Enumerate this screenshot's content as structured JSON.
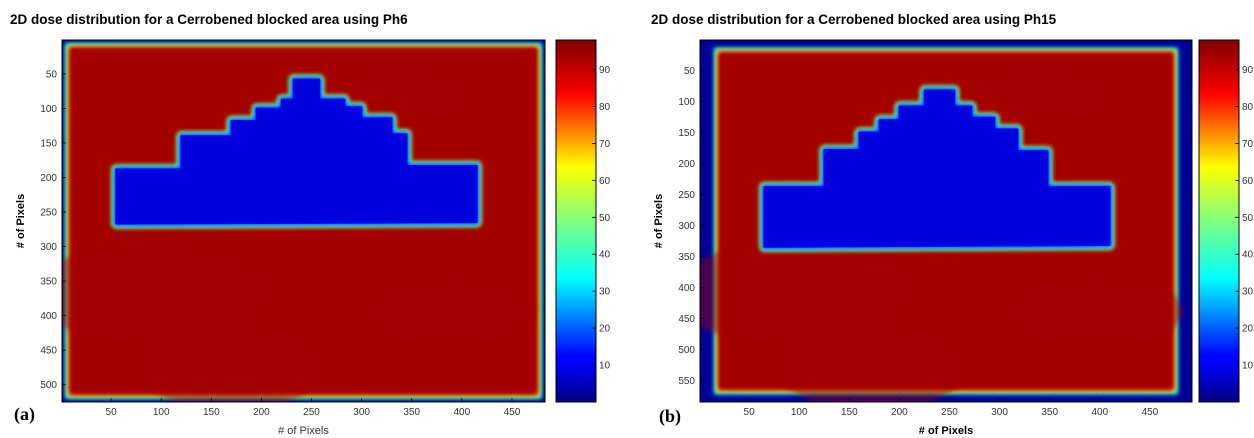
{
  "chart_data": [
    {
      "type": "heatmap",
      "panel_label": "(a)",
      "title": "2D dose distribution for a Cerrobened blocked area using Ph6",
      "xlabel": "# of Pixels",
      "ylabel": "# of Pixels",
      "xlim": [
        1,
        483
      ],
      "ylim": [
        1,
        525
      ],
      "y_reversed": true,
      "xticks": [
        50,
        100,
        150,
        200,
        250,
        300,
        350,
        400,
        450
      ],
      "yticks": [
        50,
        100,
        150,
        200,
        250,
        300,
        350,
        400,
        450,
        500
      ],
      "colorbar": {
        "ticks": [
          10,
          20,
          30,
          40,
          50,
          60,
          70,
          80,
          90
        ],
        "clim": [
          0,
          98
        ],
        "colormap": "jet"
      },
      "field_dose": 95,
      "block_dose": 2,
      "block_outline": [
        [
          55,
          188
        ],
        [
          120,
          188
        ],
        [
          120,
          140
        ],
        [
          170,
          140
        ],
        [
          170,
          118
        ],
        [
          195,
          118
        ],
        [
          195,
          100
        ],
        [
          220,
          100
        ],
        [
          220,
          87
        ],
        [
          232,
          87
        ],
        [
          232,
          58
        ],
        [
          258,
          58
        ],
        [
          258,
          87
        ],
        [
          283,
          87
        ],
        [
          283,
          98
        ],
        [
          300,
          98
        ],
        [
          300,
          114
        ],
        [
          330,
          114
        ],
        [
          330,
          137
        ],
        [
          345,
          137
        ],
        [
          345,
          183
        ],
        [
          415,
          183
        ],
        [
          415,
          265
        ],
        [
          55,
          267
        ]
      ]
    },
    {
      "type": "heatmap",
      "panel_label": "(b)",
      "title": "2D dose distribution for a Cerrobened blocked area using Ph15",
      "xlabel": "# of Pixels",
      "ylabel": "# of Pixels",
      "xlim": [
        1,
        492
      ],
      "ylim": [
        1,
        585
      ],
      "y_reversed": true,
      "xticks": [
        50,
        100,
        150,
        200,
        250,
        300,
        350,
        400,
        450
      ],
      "yticks": [
        50,
        100,
        150,
        200,
        250,
        300,
        350,
        400,
        450,
        500,
        550
      ],
      "colorbar": {
        "ticks": [
          10,
          20,
          30,
          40,
          50,
          60,
          70,
          80,
          90
        ],
        "clim": [
          0,
          98
        ],
        "colormap": "jet"
      },
      "field_dose": 95,
      "block_dose": 2,
      "block_outline": [
        [
          65,
          238
        ],
        [
          125,
          238
        ],
        [
          125,
          178
        ],
        [
          160,
          178
        ],
        [
          160,
          150
        ],
        [
          180,
          150
        ],
        [
          180,
          130
        ],
        [
          200,
          130
        ],
        [
          200,
          108
        ],
        [
          225,
          108
        ],
        [
          225,
          82
        ],
        [
          255,
          82
        ],
        [
          255,
          108
        ],
        [
          272,
          108
        ],
        [
          272,
          126
        ],
        [
          295,
          126
        ],
        [
          295,
          145
        ],
        [
          318,
          145
        ],
        [
          318,
          180
        ],
        [
          348,
          180
        ],
        [
          348,
          238
        ],
        [
          410,
          238
        ],
        [
          410,
          332
        ],
        [
          65,
          335
        ]
      ]
    }
  ]
}
